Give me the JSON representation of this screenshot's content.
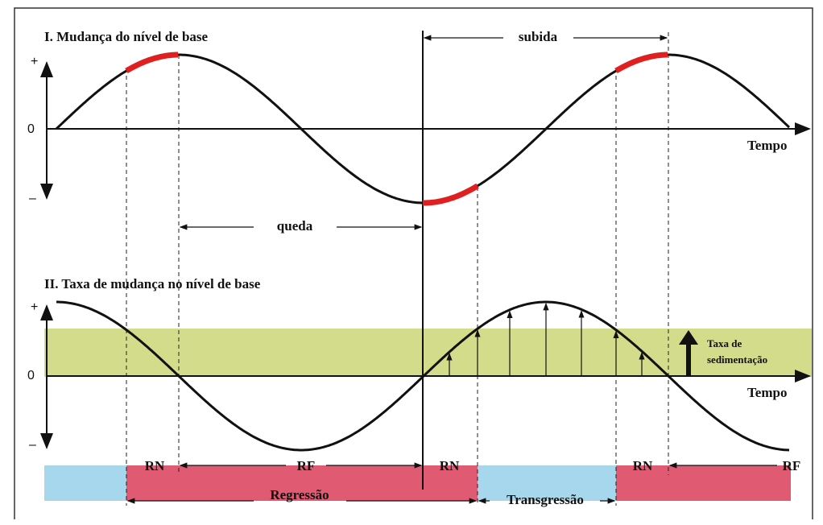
{
  "panel_1": {
    "title": "I. Mudança do nível de base",
    "plus": "+",
    "zero": "0",
    "minus": "–",
    "x_label": "Tempo",
    "rise": "subida",
    "fall": "queda"
  },
  "panel_2": {
    "title": "II. Taxa de mudança no nível de base",
    "plus": "+",
    "zero": "0",
    "minus": "–",
    "x_label": "Tempo",
    "rate_line_1": "Taxa de",
    "rate_line_2": "sedimentação"
  },
  "bars": {
    "labels": [
      "RN",
      "RF",
      "RN",
      "RN",
      "RF"
    ],
    "regression": "Regressão",
    "transgression": "Transgressão"
  }
}
